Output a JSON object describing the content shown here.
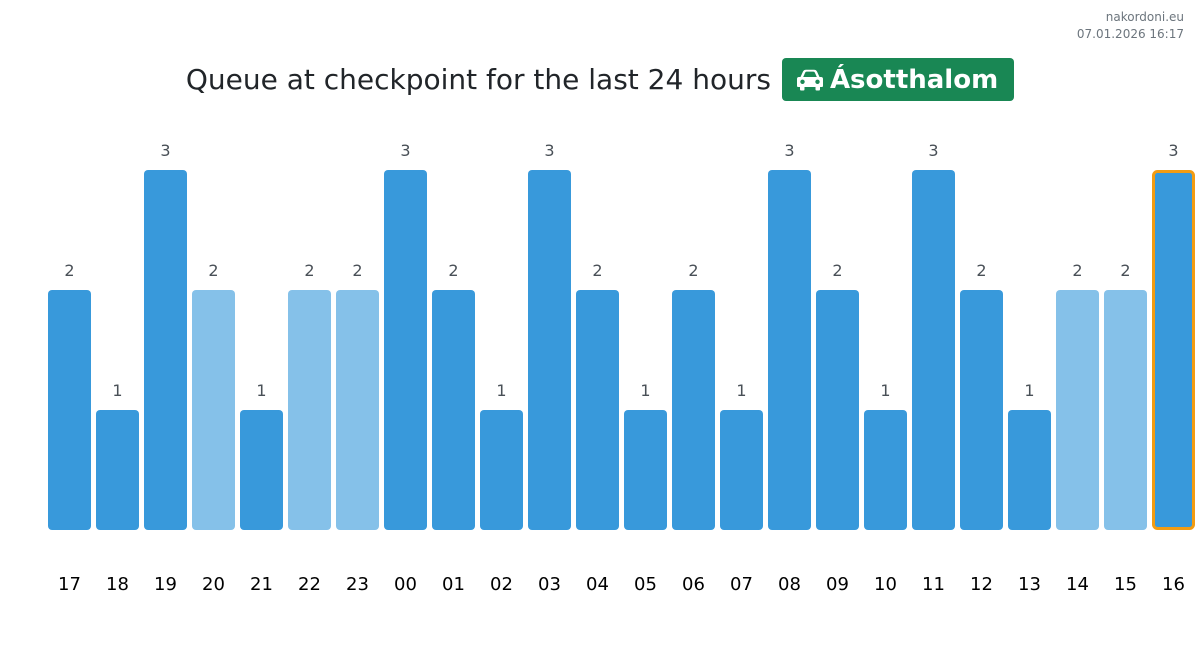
{
  "source": {
    "site": "nakordoni.eu",
    "timestamp": "07.01.2026 16:17"
  },
  "header": {
    "title": "Queue at checkpoint for the last 24 hours",
    "checkpoint_icon": "car-icon",
    "checkpoint_name": "Ásotthalom"
  },
  "colors": {
    "bar_dark": "#3899db",
    "bar_light": "#85c1e9",
    "highlight_border": "#f39c12",
    "badge": "#198754"
  },
  "chart_data": {
    "type": "bar",
    "title": "Queue at checkpoint for the last 24 hours",
    "xlabel": "",
    "ylabel": "",
    "categories": [
      "17",
      "18",
      "19",
      "20",
      "21",
      "22",
      "23",
      "00",
      "01",
      "02",
      "03",
      "04",
      "05",
      "06",
      "07",
      "08",
      "09",
      "10",
      "11",
      "12",
      "13",
      "14",
      "15",
      "16"
    ],
    "values": [
      2,
      1,
      3,
      2,
      1,
      2,
      2,
      3,
      2,
      1,
      3,
      2,
      1,
      2,
      1,
      3,
      2,
      1,
      3,
      2,
      1,
      2,
      2,
      3
    ],
    "bar_shade": [
      "dark",
      "dark",
      "dark",
      "light",
      "dark",
      "light",
      "light",
      "dark",
      "dark",
      "dark",
      "dark",
      "dark",
      "dark",
      "dark",
      "dark",
      "dark",
      "dark",
      "dark",
      "dark",
      "dark",
      "dark",
      "light",
      "light",
      "dark"
    ],
    "highlighted_category": "16",
    "ylim": [
      0,
      3
    ],
    "grid": false,
    "legend": "none"
  }
}
